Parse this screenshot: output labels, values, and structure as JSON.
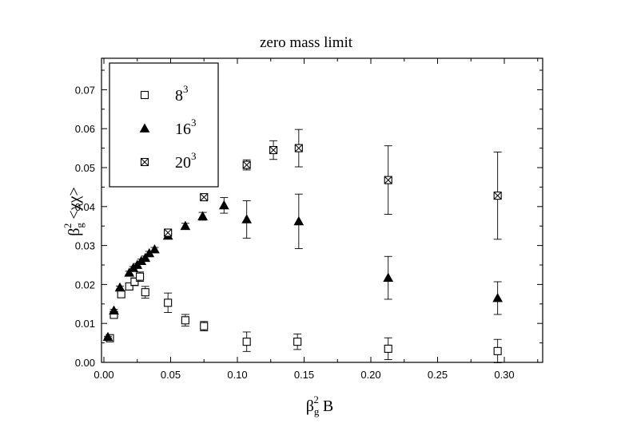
{
  "chart_data": {
    "type": "scatter",
    "title": "zero mass limit",
    "xlabel": {
      "base": "β",
      "sub": "g",
      "sup": "2",
      "rest": " B"
    },
    "ylabel": {
      "base": "β",
      "sub": "g",
      "sup": "2",
      "rest": " <χχ>"
    },
    "xlim": [
      0.0,
      0.33
    ],
    "ylim": [
      0.0,
      0.077
    ],
    "xticks": [
      0.0,
      0.05,
      0.1,
      0.15,
      0.2,
      0.25,
      0.3
    ],
    "xtick_labels": [
      "0.00",
      "0.05",
      "0.10",
      "0.15",
      "0.20",
      "0.25",
      "0.30"
    ],
    "yticks": [
      0.0,
      0.01,
      0.02,
      0.03,
      0.04,
      0.05,
      0.06,
      0.07
    ],
    "ytick_labels": [
      "0.00",
      "0.01",
      "0.02",
      "0.03",
      "0.04",
      "0.05",
      "0.06",
      "0.07"
    ],
    "legend_position": "top-left",
    "series": [
      {
        "name": "8",
        "sup": "3",
        "marker": "open-square",
        "points": [
          {
            "x": 0.0045,
            "y": 0.0062,
            "err": 0.0004
          },
          {
            "x": 0.0075,
            "y": 0.0122,
            "err": 0.0005
          },
          {
            "x": 0.013,
            "y": 0.0175,
            "err": 0.0008
          },
          {
            "x": 0.019,
            "y": 0.0195,
            "err": 0.0008
          },
          {
            "x": 0.023,
            "y": 0.0207,
            "err": 0.001
          },
          {
            "x": 0.027,
            "y": 0.022,
            "err": 0.0012
          },
          {
            "x": 0.031,
            "y": 0.018,
            "err": 0.0015
          },
          {
            "x": 0.048,
            "y": 0.0153,
            "err": 0.0025
          },
          {
            "x": 0.061,
            "y": 0.0108,
            "err": 0.0015
          },
          {
            "x": 0.075,
            "y": 0.0093,
            "err": 0.0012
          },
          {
            "x": 0.107,
            "y": 0.0053,
            "err": 0.0025
          },
          {
            "x": 0.145,
            "y": 0.0053,
            "err": 0.002
          },
          {
            "x": 0.213,
            "y": 0.0035,
            "err": 0.0028
          },
          {
            "x": 0.295,
            "y": 0.0029,
            "err": 0.003
          }
        ]
      },
      {
        "name": "16",
        "sup": "3",
        "marker": "filled-triangle",
        "points": [
          {
            "x": 0.003,
            "y": 0.0065,
            "err": 0.0002
          },
          {
            "x": 0.0075,
            "y": 0.0133,
            "err": 0.0003
          },
          {
            "x": 0.012,
            "y": 0.0192,
            "err": 0.0004
          },
          {
            "x": 0.019,
            "y": 0.023,
            "err": 0.0004
          },
          {
            "x": 0.022,
            "y": 0.0242,
            "err": 0.0004
          },
          {
            "x": 0.025,
            "y": 0.025,
            "err": 0.0004
          },
          {
            "x": 0.028,
            "y": 0.026,
            "err": 0.0005
          },
          {
            "x": 0.031,
            "y": 0.0268,
            "err": 0.0005
          },
          {
            "x": 0.034,
            "y": 0.028,
            "err": 0.0005
          },
          {
            "x": 0.038,
            "y": 0.029,
            "err": 0.0005
          },
          {
            "x": 0.048,
            "y": 0.0325,
            "err": 0.0006
          },
          {
            "x": 0.061,
            "y": 0.035,
            "err": 0.0007
          },
          {
            "x": 0.074,
            "y": 0.0375,
            "err": 0.001
          },
          {
            "x": 0.09,
            "y": 0.0403,
            "err": 0.002
          },
          {
            "x": 0.107,
            "y": 0.0367,
            "err": 0.0048
          },
          {
            "x": 0.146,
            "y": 0.0362,
            "err": 0.007
          },
          {
            "x": 0.213,
            "y": 0.0217,
            "err": 0.0055
          },
          {
            "x": 0.295,
            "y": 0.0165,
            "err": 0.0042
          }
        ]
      },
      {
        "name": "20",
        "sup": "3",
        "marker": "crossed-square",
        "points": [
          {
            "x": 0.048,
            "y": 0.0333,
            "err": 0.0005
          },
          {
            "x": 0.075,
            "y": 0.0424,
            "err": 0.0005
          },
          {
            "x": 0.107,
            "y": 0.0507,
            "err": 0.0013
          },
          {
            "x": 0.127,
            "y": 0.0545,
            "err": 0.0024
          },
          {
            "x": 0.146,
            "y": 0.055,
            "err": 0.0048
          },
          {
            "x": 0.213,
            "y": 0.0468,
            "err": 0.0088
          },
          {
            "x": 0.295,
            "y": 0.0428,
            "err": 0.0112
          }
        ]
      }
    ]
  }
}
